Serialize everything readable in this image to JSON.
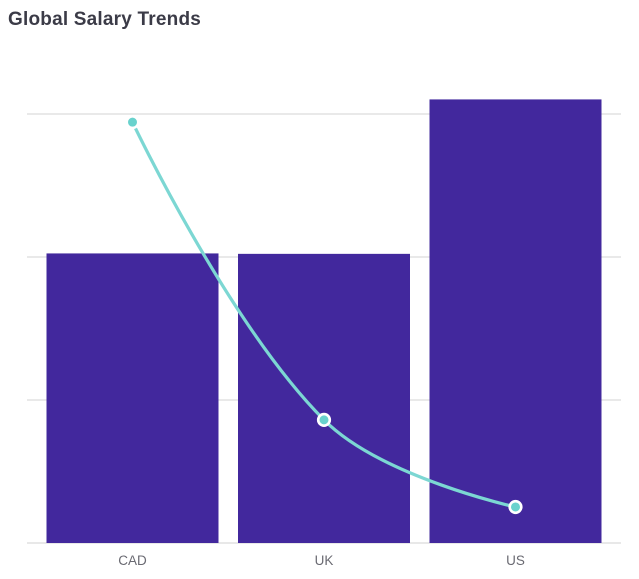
{
  "header": {
    "title": "Global Salary Trends",
    "title_color": "#3b3b47"
  },
  "chart_data": {
    "type": "combo",
    "title": "Global Salary Trends",
    "categories": [
      "CAD",
      "UK",
      "US"
    ],
    "series": [
      {
        "name": "salary-bars",
        "type": "bar",
        "color": "#42289d",
        "values": [
          67.5,
          67.4,
          103.4
        ]
      },
      {
        "name": "trend-line",
        "type": "line",
        "color": "#7cd7d3",
        "point_fill": "#69d2cd",
        "point_border": "#ffffff",
        "values": [
          98.1,
          28.7,
          8.4
        ]
      }
    ],
    "xlabel": "",
    "ylabel": "",
    "ylim": [
      0,
      104.6
    ],
    "gridline_values": [
      0,
      33.33,
      66.67,
      100
    ],
    "y_axis_labels": "none",
    "legend": "none",
    "grid_on": true,
    "grid_color": "#e2e2e2",
    "axis_line_color": "#e0e0e0",
    "tick_label_color": "#6a6a72"
  }
}
